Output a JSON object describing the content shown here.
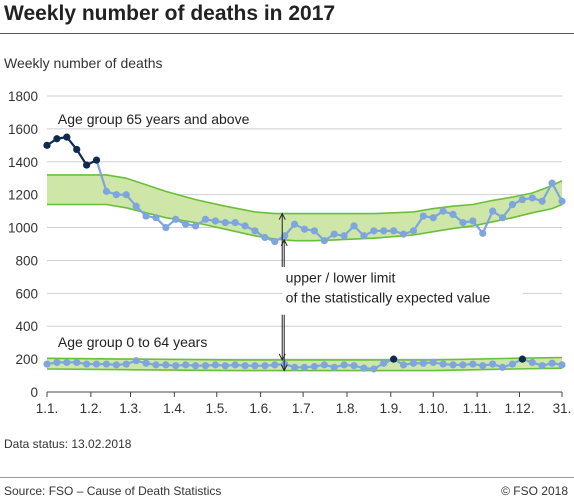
{
  "header": {
    "title": "Weekly number of deaths in 2017"
  },
  "footer": {
    "status": "Data status: 13.02.2018",
    "source": "Source: FSO – Cause of Death Statistics",
    "copyright": "© FSO 2018"
  },
  "chart_data": {
    "type": "line",
    "title": "Weekly number of deaths in 2017",
    "ylabel": "Weekly number of deaths",
    "xlabel": "",
    "ylim": [
      0,
      1800
    ],
    "yticks": [
      0,
      200,
      400,
      600,
      800,
      1000,
      1200,
      1400,
      1600,
      1800
    ],
    "xlim": [
      1,
      53
    ],
    "x_tick_labels": [
      "1.1.",
      "1.2.",
      "1.3.",
      "1.4.",
      "1.5.",
      "1.6.",
      "1.7.",
      "1.8.",
      "1.9.",
      "1.10.",
      "1.11.",
      "1.12.",
      "31."
    ],
    "x_tick_positions": [
      1,
      5.43,
      9.43,
      13.86,
      18.14,
      22.57,
      26.86,
      31.29,
      35.71,
      40,
      44.43,
      48.71,
      53
    ],
    "grid": true,
    "colors": {
      "band": "#cfe6a9",
      "band_edge": "#6abf3a",
      "series": "#7fa6dc",
      "highlight": "#0f2a4e"
    },
    "annotations": {
      "group_65": "Age group 65 years and above",
      "group_0_64": "Age group 0 to 64 years",
      "limit_line1": "upper / lower limit",
      "limit_line2": "of the statistically expected value"
    },
    "series": [
      {
        "name": "Age group 65 years and above",
        "x": [
          1,
          2,
          3,
          4,
          5,
          6,
          7,
          8,
          9,
          10,
          11,
          12,
          13,
          14,
          15,
          16,
          17,
          18,
          19,
          20,
          21,
          22,
          23,
          24,
          25,
          26,
          27,
          28,
          29,
          30,
          31,
          32,
          33,
          34,
          35,
          36,
          37,
          38,
          39,
          40,
          41,
          42,
          43,
          44,
          45,
          46,
          47,
          48,
          49,
          50,
          51,
          52,
          53
        ],
        "values": [
          1500,
          1540,
          1550,
          1475,
          1380,
          1410,
          1220,
          1200,
          1200,
          1130,
          1070,
          1060,
          1000,
          1050,
          1020,
          1010,
          1050,
          1040,
          1030,
          1030,
          1010,
          980,
          940,
          915,
          950,
          1020,
          990,
          980,
          920,
          960,
          950,
          1010,
          950,
          980,
          980,
          980,
          960,
          980,
          1070,
          1060,
          1100,
          1080,
          1030,
          1040,
          965,
          1100,
          1060,
          1140,
          1170,
          1180,
          1160,
          1270,
          1160
        ],
        "highlight_x": [
          1,
          2,
          3,
          4,
          5,
          6
        ]
      },
      {
        "name": "Age group 0 to 64 years",
        "x": [
          1,
          2,
          3,
          4,
          5,
          6,
          7,
          8,
          9,
          10,
          11,
          12,
          13,
          14,
          15,
          16,
          17,
          18,
          19,
          20,
          21,
          22,
          23,
          24,
          25,
          26,
          27,
          28,
          29,
          30,
          31,
          32,
          33,
          34,
          35,
          36,
          37,
          38,
          39,
          40,
          41,
          42,
          43,
          44,
          45,
          46,
          47,
          48,
          49,
          50,
          51,
          52,
          53
        ],
        "values": [
          170,
          180,
          180,
          180,
          170,
          170,
          170,
          165,
          170,
          190,
          175,
          165,
          165,
          160,
          165,
          160,
          160,
          165,
          160,
          165,
          160,
          160,
          160,
          165,
          170,
          150,
          150,
          155,
          165,
          150,
          165,
          160,
          145,
          140,
          175,
          200,
          165,
          175,
          175,
          180,
          170,
          165,
          165,
          170,
          160,
          170,
          150,
          170,
          200,
          180,
          160,
          175,
          165
        ],
        "highlight_x": [
          36,
          49
        ]
      }
    ],
    "bands": [
      {
        "name": "",
        "x": [
          1,
          7,
          9,
          11,
          13,
          16,
          19,
          22,
          24,
          26,
          28,
          30,
          32,
          34,
          36,
          38,
          40,
          42,
          44,
          46,
          48,
          50,
          52,
          53
        ],
        "upper": [
          1320,
          1320,
          1300,
          1260,
          1220,
          1170,
          1130,
          1095,
          1085,
          1085,
          1085,
          1085,
          1085,
          1085,
          1090,
          1095,
          1115,
          1130,
          1140,
          1165,
          1185,
          1210,
          1255,
          1285
        ],
        "lower": [
          1140,
          1140,
          1120,
          1090,
          1060,
          1030,
          990,
          950,
          930,
          920,
          920,
          925,
          930,
          935,
          945,
          955,
          975,
          995,
          1010,
          1035,
          1060,
          1090,
          1115,
          1140
        ]
      },
      {
        "name": "",
        "x": [
          1,
          10,
          20,
          30,
          40,
          48,
          53
        ],
        "upper": [
          205,
          200,
          195,
          195,
          195,
          205,
          210
        ],
        "lower": [
          140,
          135,
          130,
          130,
          130,
          140,
          145
        ]
      }
    ]
  }
}
